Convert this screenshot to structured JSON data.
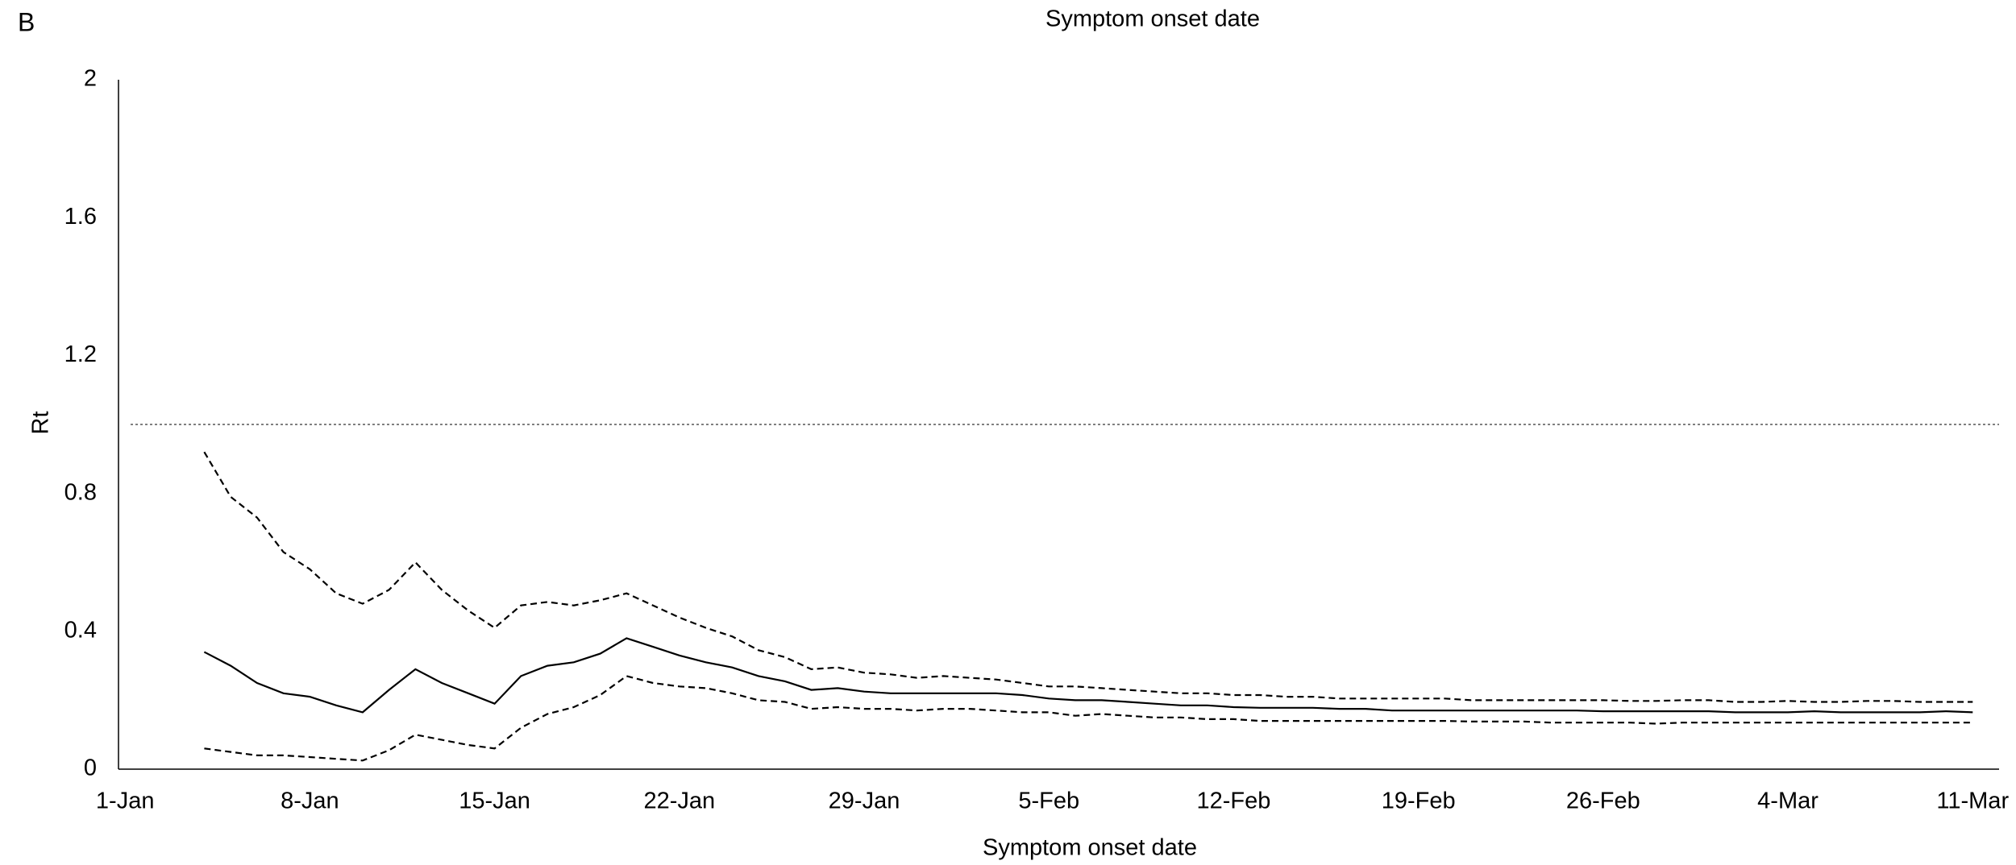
{
  "chart_data": {
    "type": "line",
    "panel_label": "B",
    "title": "Symptom onset date",
    "x_label": "Symptom onset date",
    "y_label": "Rt",
    "x": [
      3,
      4,
      5,
      6,
      7,
      8,
      9,
      10,
      11,
      12,
      13,
      14,
      15,
      16,
      17,
      18,
      19,
      20,
      21,
      22,
      23,
      24,
      25,
      26,
      27,
      28,
      29,
      30,
      31,
      32,
      33,
      34,
      35,
      36,
      37,
      38,
      39,
      40,
      41,
      42,
      43,
      44,
      45,
      46,
      47,
      48,
      49,
      50,
      51,
      52,
      53,
      54,
      55,
      56,
      57,
      58,
      59,
      60,
      61,
      62,
      63,
      64,
      65,
      66,
      67,
      68,
      69,
      70
    ],
    "series": [
      {
        "color": "#000000",
        "style": "solid",
        "values": [
          0.34,
          0.3,
          0.25,
          0.22,
          0.21,
          0.185,
          0.165,
          0.23,
          0.29,
          0.25,
          0.22,
          0.19,
          0.27,
          0.3,
          0.31,
          0.335,
          0.38,
          0.355,
          0.33,
          0.31,
          0.295,
          0.27,
          0.255,
          0.23,
          0.235,
          0.225,
          0.22,
          0.22,
          0.22,
          0.22,
          0.22,
          0.215,
          0.205,
          0.2,
          0.2,
          0.195,
          0.19,
          0.185,
          0.185,
          0.18,
          0.178,
          0.178,
          0.178,
          0.175,
          0.175,
          0.17,
          0.17,
          0.17,
          0.17,
          0.17,
          0.17,
          0.17,
          0.17,
          0.168,
          0.168,
          0.168,
          0.168,
          0.168,
          0.165,
          0.165,
          0.165,
          0.168,
          0.165,
          0.165,
          0.165,
          0.165,
          0.168,
          0.165
        ]
      },
      {
        "color": "#000000",
        "style": "dashed",
        "values": [
          0.92,
          0.79,
          0.73,
          0.63,
          0.58,
          0.51,
          0.48,
          0.52,
          0.6,
          0.52,
          0.46,
          0.41,
          0.475,
          0.485,
          0.475,
          0.49,
          0.51,
          0.475,
          0.44,
          0.41,
          0.385,
          0.345,
          0.325,
          0.29,
          0.295,
          0.28,
          0.275,
          0.265,
          0.27,
          0.265,
          0.26,
          0.25,
          0.24,
          0.24,
          0.235,
          0.23,
          0.225,
          0.22,
          0.22,
          0.215,
          0.215,
          0.21,
          0.21,
          0.205,
          0.205,
          0.205,
          0.205,
          0.205,
          0.2,
          0.2,
          0.2,
          0.2,
          0.2,
          0.2,
          0.198,
          0.198,
          0.2,
          0.2,
          0.195,
          0.195,
          0.198,
          0.195,
          0.195,
          0.198,
          0.198,
          0.195,
          0.195,
          0.195
        ]
      },
      {
        "color": "#000000",
        "style": "dashed",
        "values": [
          0.06,
          0.05,
          0.04,
          0.04,
          0.035,
          0.03,
          0.025,
          0.055,
          0.1,
          0.085,
          0.07,
          0.06,
          0.12,
          0.16,
          0.18,
          0.215,
          0.27,
          0.25,
          0.24,
          0.235,
          0.22,
          0.2,
          0.195,
          0.175,
          0.18,
          0.175,
          0.175,
          0.17,
          0.175,
          0.175,
          0.17,
          0.165,
          0.165,
          0.155,
          0.16,
          0.155,
          0.15,
          0.15,
          0.145,
          0.145,
          0.14,
          0.14,
          0.14,
          0.14,
          0.14,
          0.14,
          0.14,
          0.14,
          0.138,
          0.138,
          0.138,
          0.135,
          0.135,
          0.135,
          0.135,
          0.132,
          0.135,
          0.135,
          0.135,
          0.135,
          0.135,
          0.135,
          0.135,
          0.135,
          0.135,
          0.135,
          0.135,
          0.135
        ]
      }
    ],
    "reference_line": {
      "value": 1,
      "color": "#555555",
      "style": "dotted"
    },
    "xlim": [
      -0.25,
      71
    ],
    "xticks": [
      {
        "value": 0,
        "label": "1-Jan"
      },
      {
        "value": 7,
        "label": "8-Jan"
      },
      {
        "value": 14,
        "label": "15-Jan"
      },
      {
        "value": 21,
        "label": "22-Jan"
      },
      {
        "value": 28,
        "label": "29-Jan"
      },
      {
        "value": 35,
        "label": "5-Feb"
      },
      {
        "value": 42,
        "label": "12-Feb"
      },
      {
        "value": 49,
        "label": "19-Feb"
      },
      {
        "value": 56,
        "label": "26-Feb"
      },
      {
        "value": 63,
        "label": "4-Mar"
      },
      {
        "value": 70,
        "label": "11-Mar"
      }
    ],
    "ylim": [
      0,
      2
    ],
    "yticks": [
      0,
      0.4,
      0.8,
      1.2,
      1.6,
      2
    ],
    "grid": false
  }
}
